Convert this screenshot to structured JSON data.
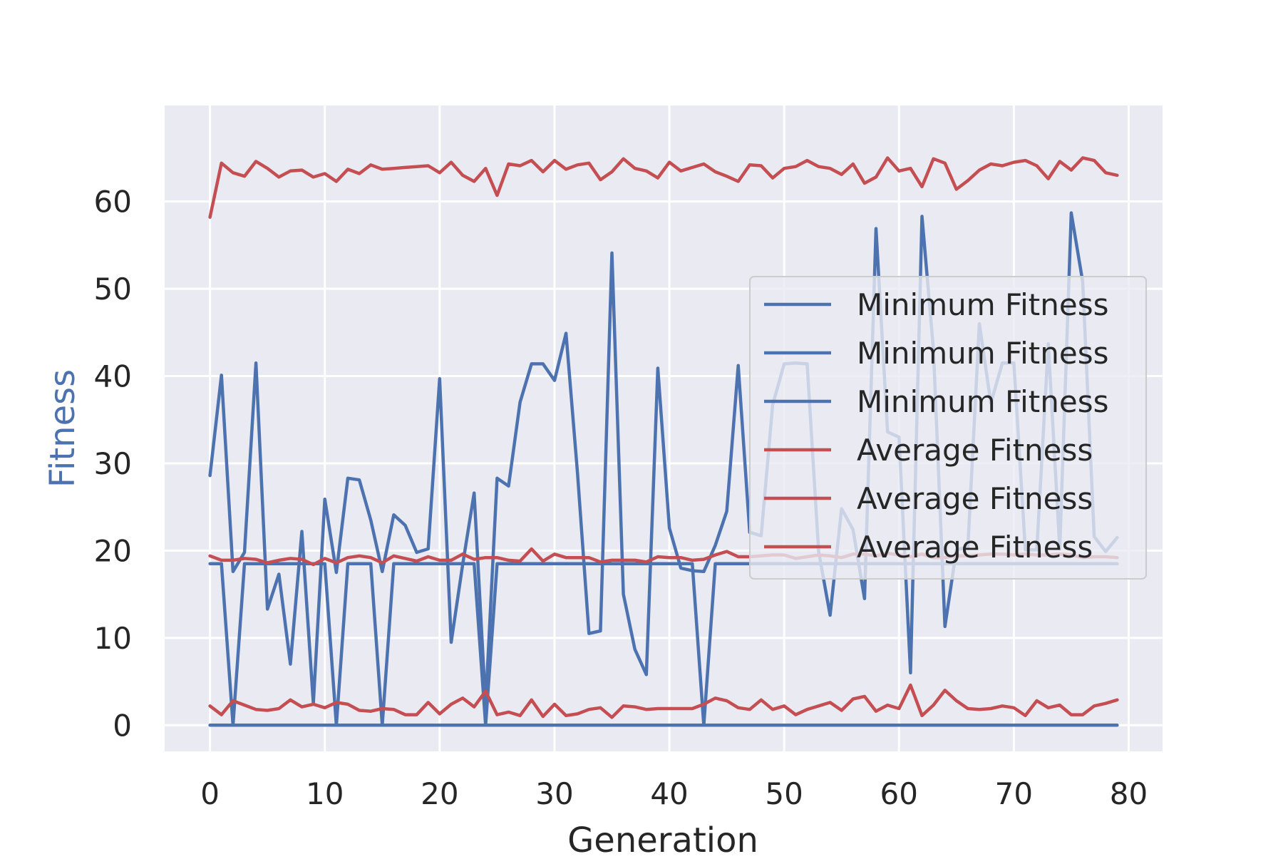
{
  "chart_data": {
    "type": "line",
    "title": "",
    "xlabel": "Generation",
    "ylabel": "Fitness",
    "xlim": [
      -3.95,
      82.95
    ],
    "ylim": [
      -3,
      71
    ],
    "x_ticks": [
      "0",
      "10",
      "20",
      "30",
      "40",
      "50",
      "60",
      "70",
      "80"
    ],
    "y_ticks": [
      "0",
      "10",
      "20",
      "30",
      "40",
      "50",
      "60"
    ],
    "grid": true,
    "legend_position": "center-right",
    "colors": {
      "minimum": "#4c72b0",
      "average": "#c44e52",
      "plot_background": "#eaeaf2",
      "ylabel": "#4c72b0"
    },
    "x": [
      0,
      1,
      2,
      3,
      4,
      5,
      6,
      7,
      8,
      9,
      10,
      11,
      12,
      13,
      14,
      15,
      16,
      17,
      18,
      19,
      20,
      21,
      22,
      23,
      24,
      25,
      26,
      27,
      28,
      29,
      30,
      31,
      32,
      33,
      34,
      35,
      36,
      37,
      38,
      39,
      40,
      41,
      42,
      43,
      44,
      45,
      46,
      47,
      48,
      49,
      50,
      51,
      52,
      53,
      54,
      55,
      56,
      57,
      58,
      59,
      60,
      61,
      62,
      63,
      64,
      65,
      66,
      67,
      68,
      69,
      70,
      71,
      72,
      73,
      74,
      75,
      76,
      77,
      78,
      79
    ],
    "series": [
      {
        "name": "Minimum Fitness",
        "color": "#4c72b0",
        "values": [
          0,
          0,
          0,
          0,
          0,
          0,
          0,
          0,
          0,
          0,
          0,
          0,
          0,
          0,
          0,
          0,
          0,
          0,
          0,
          0,
          0,
          0,
          0,
          0,
          0,
          0,
          0,
          0,
          0,
          0,
          0,
          0,
          0,
          0,
          0,
          0,
          0,
          0,
          0,
          0,
          0,
          0,
          0,
          0,
          0,
          0,
          0,
          0,
          0,
          0,
          0,
          0,
          0,
          0,
          0,
          0,
          0,
          0,
          0,
          0,
          0,
          0,
          0,
          0,
          0,
          0,
          0,
          0,
          0,
          0,
          0,
          0,
          0,
          0,
          0,
          0,
          0,
          0,
          0,
          0
        ]
      },
      {
        "name": "Minimum Fitness",
        "color": "#4c72b0",
        "values": [
          18.5,
          18.5,
          0,
          18.5,
          18.5,
          18.5,
          18.5,
          18.5,
          18.5,
          18.5,
          18.5,
          0,
          18.5,
          18.5,
          18.5,
          0,
          18.5,
          18.5,
          18.5,
          18.5,
          18.5,
          18.5,
          18.5,
          18.5,
          0,
          18.5,
          18.5,
          18.5,
          18.5,
          18.5,
          18.5,
          18.5,
          18.5,
          18.5,
          18.5,
          18.5,
          18.5,
          18.5,
          18.5,
          18.5,
          18.5,
          18.5,
          18.5,
          0,
          18.5,
          18.5,
          18.5,
          18.5,
          18.5,
          18.5,
          18.5,
          18.5,
          18.5,
          18.5,
          18.5,
          18.5,
          18.5,
          18.5,
          18.5,
          18.5,
          18.5,
          18.5,
          18.5,
          18.5,
          18.5,
          18.5,
          18.5,
          18.5,
          18.5,
          18.5,
          18.5,
          18.5,
          18.5,
          18.5,
          18.5,
          18.5,
          18.5,
          18.5,
          18.5,
          18.5
        ]
      },
      {
        "name": "Minimum Fitness",
        "color": "#4c72b0",
        "values": [
          28.6,
          40.1,
          17.6,
          19.8,
          41.5,
          13.3,
          17.3,
          7.0,
          22.2,
          2.5,
          25.9,
          17.5,
          28.3,
          28.1,
          23.5,
          17.6,
          24.1,
          22.9,
          19.8,
          20.2,
          39.7,
          9.5,
          18.4,
          26.6,
          2.3,
          28.3,
          27.4,
          37.0,
          41.4,
          41.4,
          39.5,
          44.9,
          28.9,
          10.5,
          10.8,
          54.1,
          15.0,
          8.7,
          5.8,
          40.9,
          22.6,
          18.0,
          17.7,
          17.6,
          20.6,
          24.5,
          41.2,
          22.1,
          21.7,
          36.7,
          41.4,
          41.5,
          41.4,
          19.9,
          12.6,
          24.8,
          22.4,
          14.5,
          56.9,
          33.6,
          33.0,
          6.0,
          58.3,
          43.0,
          11.3,
          20.1,
          20.4,
          46.0,
          36.9,
          41.5,
          41.5,
          20.1,
          20.1,
          43.7,
          20.2,
          58.7,
          50.8,
          21.6,
          19.9,
          21.5
        ]
      },
      {
        "name": "Average Fitness",
        "color": "#c44e52",
        "values": [
          2.2,
          1.2,
          2.8,
          2.3,
          1.8,
          1.7,
          1.9,
          2.9,
          2.1,
          2.4,
          2.0,
          2.6,
          2.4,
          1.7,
          1.6,
          1.9,
          1.8,
          1.2,
          1.2,
          2.6,
          1.3,
          2.4,
          3.1,
          2.1,
          3.9,
          1.2,
          1.5,
          1.1,
          2.9,
          1.0,
          2.4,
          1.1,
          1.3,
          1.8,
          2.0,
          0.9,
          2.2,
          2.1,
          1.8,
          1.9,
          1.9,
          1.9,
          1.9,
          2.4,
          3.1,
          2.8,
          2.0,
          1.8,
          2.9,
          1.8,
          2.2,
          1.2,
          1.8,
          2.2,
          2.6,
          1.7,
          3.0,
          3.3,
          1.6,
          2.3,
          1.9,
          4.6,
          1.1,
          2.3,
          4.0,
          2.8,
          1.9,
          1.8,
          1.9,
          2.2,
          2.0,
          1.1,
          2.8,
          2.0,
          2.3,
          1.2,
          1.2,
          2.2,
          2.5,
          2.9
        ]
      },
      {
        "name": "Average Fitness",
        "color": "#c44e52",
        "values": [
          19.4,
          18.9,
          18.9,
          19.1,
          19.0,
          18.6,
          18.9,
          19.1,
          19.0,
          18.4,
          19.1,
          18.6,
          19.2,
          19.4,
          19.2,
          18.6,
          19.4,
          19.1,
          18.8,
          19.3,
          18.9,
          18.9,
          19.6,
          19.0,
          19.2,
          19.2,
          18.9,
          18.8,
          20.2,
          18.8,
          19.6,
          19.2,
          19.2,
          19.2,
          18.7,
          18.9,
          18.9,
          18.9,
          18.7,
          19.3,
          19.2,
          19.2,
          18.9,
          19.0,
          19.5,
          19.9,
          19.3,
          19.3,
          19.4,
          19.5,
          19.5,
          19.1,
          19.3,
          19.5,
          19.4,
          19.2,
          19.6,
          19.6,
          19.4,
          19.7,
          19.5,
          19.3,
          19.6,
          19.2,
          19.2,
          19.4,
          19.4,
          19.5,
          19.6,
          19.6,
          19.5,
          19.6,
          19.5,
          19.5,
          19.6,
          19.5,
          19.2,
          19.3,
          19.3,
          19.2
        ]
      },
      {
        "name": "Average Fitness",
        "color": "#c44e52",
        "values": [
          58.2,
          64.4,
          63.3,
          62.9,
          64.6,
          63.8,
          62.8,
          63.5,
          63.6,
          62.8,
          63.2,
          62.3,
          63.7,
          63.2,
          64.2,
          63.7,
          63.8,
          63.9,
          64.0,
          64.1,
          63.3,
          64.5,
          63.0,
          62.3,
          63.8,
          60.7,
          64.3,
          64.1,
          64.7,
          63.4,
          64.7,
          63.7,
          64.2,
          64.4,
          62.5,
          63.4,
          64.9,
          63.8,
          63.5,
          62.7,
          64.5,
          63.5,
          63.9,
          64.3,
          63.4,
          62.9,
          62.3,
          64.2,
          64.1,
          62.7,
          63.8,
          64.0,
          64.7,
          64.0,
          63.8,
          63.1,
          64.3,
          62.1,
          62.8,
          65.0,
          63.5,
          63.8,
          61.7,
          64.9,
          64.4,
          61.4,
          62.4,
          63.6,
          64.3,
          64.1,
          64.5,
          64.7,
          64.1,
          62.6,
          64.6,
          63.6,
          65.0,
          64.7,
          63.3,
          63.0
        ]
      }
    ]
  }
}
